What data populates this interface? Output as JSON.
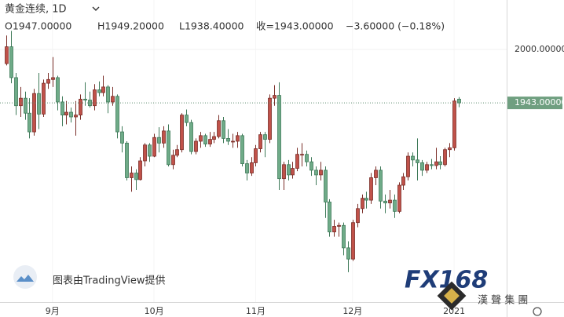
{
  "chart_data": {
    "type": "candlestick",
    "legend": {
      "symbol": "黄金连续, 1D",
      "open": "O1947.00000",
      "high": "H1949.20000",
      "low": "L1938.40000",
      "close": "收=1943.00000",
      "change": "−3.60000 (−0.18%)"
    },
    "watermark": "图表由TradingView提供",
    "brand": {
      "logo": "FX168",
      "sub": "漢 聲 集 團"
    },
    "up_color": "#c0524a",
    "down_color": "#6fab88",
    "ylim": [
      1730,
      2053
    ],
    "yticks": [
      {
        "value": 2000,
        "label": "2000.00000"
      }
    ],
    "last_price": {
      "value": 1943,
      "label": "1943.00000"
    },
    "categories": [
      null,
      null,
      null,
      null,
      null,
      null,
      null,
      null,
      null,
      null,
      "9月",
      null,
      null,
      null,
      null,
      null,
      null,
      null,
      null,
      null,
      null,
      null,
      null,
      null,
      null,
      null,
      null,
      null,
      null,
      null,
      null,
      null,
      "10月",
      null,
      null,
      null,
      null,
      null,
      null,
      null,
      null,
      null,
      null,
      null,
      null,
      null,
      null,
      null,
      null,
      null,
      null,
      null,
      null,
      null,
      "11月",
      null,
      null,
      null,
      null,
      null,
      null,
      null,
      null,
      null,
      null,
      null,
      null,
      null,
      null,
      null,
      null,
      null,
      null,
      null,
      null,
      "12月",
      null,
      null,
      null,
      null,
      null,
      null,
      null,
      null,
      null,
      null,
      null,
      null,
      null,
      null,
      null,
      null,
      null,
      null,
      null,
      null,
      null,
      "2021",
      null
    ],
    "open": [
      1985,
      2003,
      1970,
      1940,
      1948,
      1932,
      1912,
      1953,
      1931,
      1964,
      1968,
      1970,
      1944,
      1930,
      1933,
      1928,
      1930,
      1947,
      1946,
      1940,
      1957,
      1954,
      1960,
      1944,
      1950,
      1912,
      1900,
      1863,
      1868,
      1861,
      1881,
      1898,
      1886,
      1906,
      1900,
      1913,
      1877,
      1887,
      1893,
      1930,
      1922,
      1891,
      1902,
      1908,
      1899,
      1904,
      1907,
      1924,
      1905,
      1902,
      1902,
      1908,
      1878,
      1868,
      1879,
      1894,
      1909,
      1904,
      1948,
      1951,
      1862,
      1877,
      1866,
      1873,
      1888,
      1888,
      1880,
      1871,
      1866,
      1871,
      1837,
      1805,
      1811,
      1812,
      1788,
      1776,
      1815,
      1830,
      1841,
      1839,
      1863,
      1871,
      1838,
      1836,
      1839,
      1827,
      1855,
      1864,
      1886,
      1882,
      1879,
      1871,
      1877,
      1876,
      1880,
      1877,
      1893,
      1895,
      1947
    ],
    "high": [
      2015,
      2020,
      1975,
      1960,
      1955,
      1948,
      1958,
      1975,
      1968,
      1975,
      1992,
      1972,
      1950,
      1945,
      1938,
      1945,
      1952,
      1965,
      1955,
      1963,
      1966,
      1972,
      1962,
      1960,
      1952,
      1918,
      1902,
      1875,
      1872,
      1885,
      1900,
      1900,
      1910,
      1917,
      1918,
      1920,
      1893,
      1898,
      1932,
      1936,
      1925,
      1905,
      1912,
      1910,
      1912,
      1912,
      1930,
      1928,
      1915,
      1910,
      1912,
      1910,
      1882,
      1885,
      1898,
      1912,
      1912,
      1952,
      1962,
      1965,
      1880,
      1882,
      1880,
      1895,
      1900,
      1892,
      1885,
      1875,
      1880,
      1875,
      1840,
      1818,
      1815,
      1815,
      1795,
      1818,
      1835,
      1845,
      1848,
      1868,
      1875,
      1875,
      1845,
      1850,
      1845,
      1858,
      1868,
      1890,
      1890,
      1905,
      1882,
      1880,
      1883,
      1895,
      1886,
      1895,
      1900,
      1948,
      1949.2
    ],
    "low": [
      1983,
      1964,
      1930,
      1928,
      1925,
      1905,
      1908,
      1915,
      1928,
      1958,
      1960,
      1935,
      1918,
      1920,
      1922,
      1908,
      1925,
      1940,
      1938,
      1935,
      1950,
      1950,
      1932,
      1940,
      1905,
      1890,
      1860,
      1848,
      1850,
      1860,
      1875,
      1880,
      1885,
      1890,
      1895,
      1875,
      1872,
      1885,
      1890,
      1918,
      1888,
      1888,
      1895,
      1896,
      1896,
      1900,
      1905,
      1900,
      1898,
      1895,
      1895,
      1875,
      1860,
      1865,
      1875,
      1890,
      1885,
      1900,
      1940,
      1850,
      1850,
      1860,
      1862,
      1870,
      1875,
      1875,
      1865,
      1855,
      1860,
      1820,
      1800,
      1800,
      1800,
      1780,
      1762,
      1774,
      1810,
      1825,
      1830,
      1835,
      1855,
      1830,
      1825,
      1830,
      1820,
      1825,
      1850,
      1860,
      1875,
      1860,
      1865,
      1868,
      1872,
      1872,
      1872,
      1875,
      1885,
      1892,
      1938.4
    ],
    "close": [
      2003,
      1970,
      1940,
      1948,
      1932,
      1912,
      1953,
      1931,
      1964,
      1968,
      1970,
      1944,
      1930,
      1933,
      1928,
      1930,
      1947,
      1946,
      1940,
      1957,
      1954,
      1960,
      1944,
      1950,
      1912,
      1900,
      1863,
      1868,
      1861,
      1881,
      1898,
      1886,
      1906,
      1900,
      1913,
      1877,
      1887,
      1893,
      1930,
      1922,
      1891,
      1902,
      1908,
      1899,
      1904,
      1907,
      1924,
      1905,
      1902,
      1902,
      1908,
      1878,
      1868,
      1879,
      1894,
      1909,
      1904,
      1948,
      1951,
      1862,
      1877,
      1866,
      1873,
      1888,
      1888,
      1880,
      1871,
      1866,
      1871,
      1837,
      1805,
      1811,
      1812,
      1788,
      1776,
      1815,
      1830,
      1841,
      1839,
      1863,
      1871,
      1838,
      1836,
      1839,
      1827,
      1855,
      1864,
      1886,
      1882,
      1879,
      1871,
      1877,
      1876,
      1880,
      1877,
      1893,
      1895,
      1945,
      1943
    ]
  }
}
